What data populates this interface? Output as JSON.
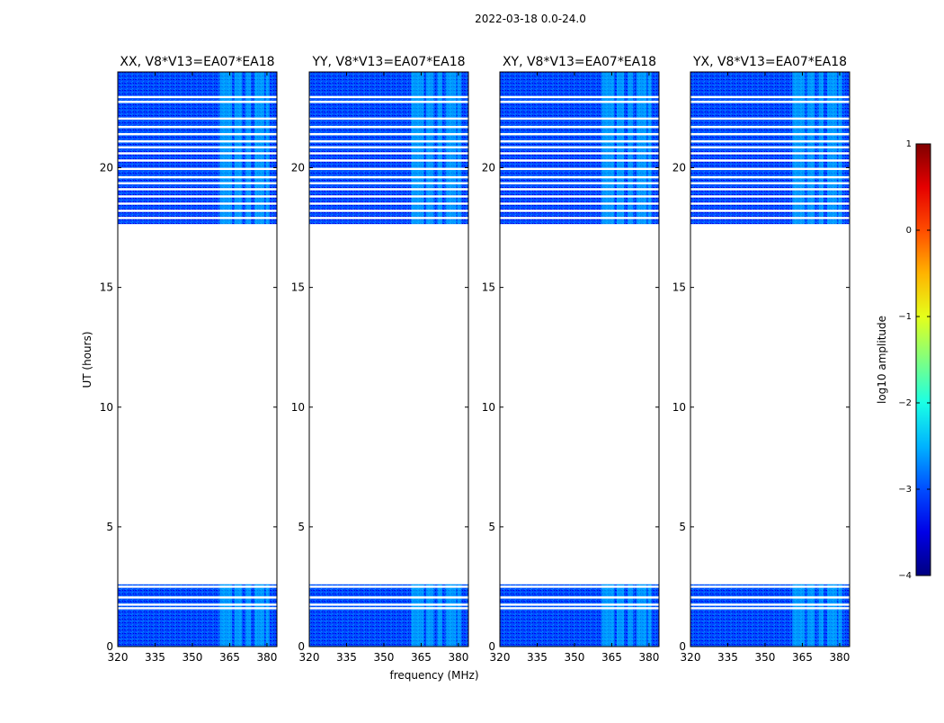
{
  "figure_title": "2022-03-18 0.0-24.0",
  "chart_data": {
    "type": "heatmap",
    "suptitle": "2022-03-18 0.0-24.0",
    "baseline": "V8*V13=EA07*EA18",
    "xlabel": "frequency (MHz)",
    "ylabel": "UT (hours)",
    "xlim": [
      320,
      384
    ],
    "ylim": [
      0,
      24
    ],
    "xticks": [
      320,
      335,
      350,
      365,
      380
    ],
    "yticks": [
      0,
      5,
      10,
      15,
      20
    ],
    "panels": [
      {
        "polarization": "XX",
        "title": "XX, V8*V13=EA07*EA18"
      },
      {
        "polarization": "YY",
        "title": "YY, V8*V13=EA07*EA18"
      },
      {
        "polarization": "XY",
        "title": "XY, V8*V13=EA07*EA18"
      },
      {
        "polarization": "YX",
        "title": "YX, V8*V13=EA07*EA18"
      }
    ],
    "data_time_ranges_hours": [
      [
        0,
        2.6
      ],
      [
        17.6,
        24
      ]
    ],
    "blank_rows_hours": [
      1.6,
      1.75,
      2.05,
      2.5,
      17.6,
      17.9,
      18.2,
      18.5,
      18.8,
      19.1,
      19.35,
      19.6,
      19.95,
      20.3,
      20.6,
      20.85,
      21.1,
      21.4,
      21.7,
      22.05,
      22.75,
      22.95
    ],
    "background_log_amplitude": -3.0,
    "bright_bands_mhz": [
      [
        361,
        366
      ],
      [
        367,
        370
      ],
      [
        371.5,
        373.5
      ],
      [
        375,
        379
      ],
      [
        379.5,
        381
      ]
    ],
    "bright_band_log_amplitude": -2.3,
    "colorbar": {
      "label": "log10 amplitude",
      "range": [
        -4,
        1
      ],
      "ticks": [
        1,
        0,
        -1,
        -2,
        -3,
        -4
      ],
      "tick_labels": [
        "1",
        "0",
        "−1",
        "−2",
        "−3",
        "−4"
      ],
      "colormap": "jet"
    }
  }
}
